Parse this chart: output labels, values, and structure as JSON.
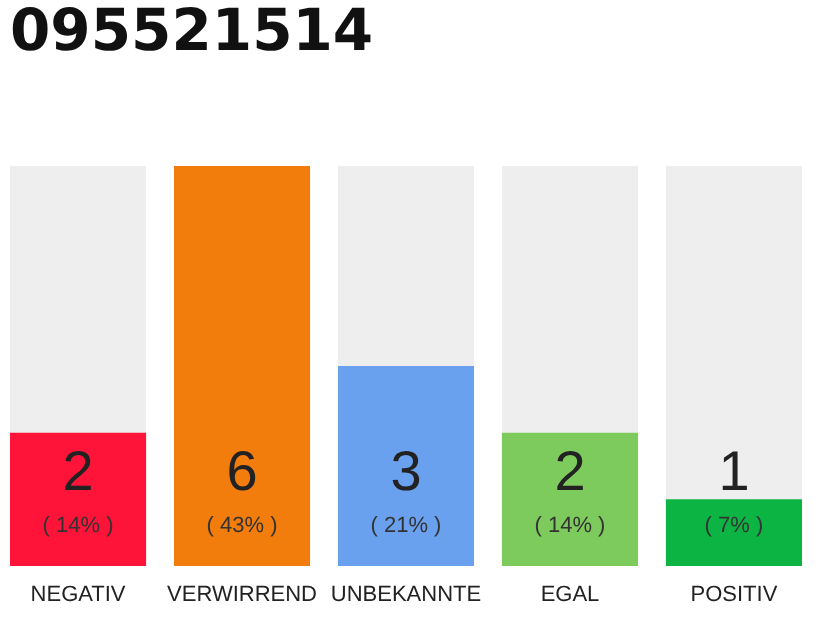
{
  "chart_data": {
    "type": "bar",
    "title": "095521514",
    "categories": [
      "NEGATIV",
      "VERWIRREND",
      "UNBEKANNTE",
      "EGAL",
      "POSITIV"
    ],
    "values": [
      2,
      6,
      3,
      2,
      1
    ],
    "colors": [
      "#ff1439",
      "#f27c0c",
      "#6aa1ee",
      "#7dcb5d",
      "#0cb444"
    ],
    "data_labels": true,
    "annotations": [
      "( 14% )",
      "( 43% )",
      "( 21% )",
      "( 14% )",
      "( 7% )"
    ]
  }
}
